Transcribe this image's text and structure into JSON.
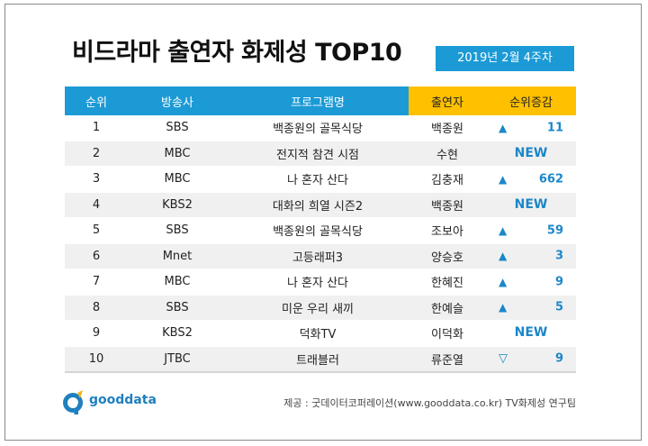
{
  "header": {
    "title": "비드라마 출연자 화제성 TOP10",
    "week": "2019년  2월 4주차"
  },
  "table": {
    "columns": [
      "순위",
      "방송사",
      "프로그램명",
      "출연자",
      "순위증감"
    ],
    "rows": [
      {
        "rank": "1",
        "broadcaster": "SBS",
        "program": "백종원의 골목식당",
        "performer": "백종원",
        "change": {
          "dir": "up",
          "value": "11"
        }
      },
      {
        "rank": "2",
        "broadcaster": "MBC",
        "program": "전지적 참견 시점",
        "performer": "수현",
        "change": {
          "dir": "new",
          "value": "NEW"
        }
      },
      {
        "rank": "3",
        "broadcaster": "MBC",
        "program": "나 혼자 산다",
        "performer": "김충재",
        "change": {
          "dir": "up",
          "value": "662"
        }
      },
      {
        "rank": "4",
        "broadcaster": "KBS2",
        "program": "대화의 희열 시즌2",
        "performer": "백종원",
        "change": {
          "dir": "new",
          "value": "NEW"
        }
      },
      {
        "rank": "5",
        "broadcaster": "SBS",
        "program": "백종원의 골목식당",
        "performer": "조보아",
        "change": {
          "dir": "up",
          "value": "59"
        }
      },
      {
        "rank": "6",
        "broadcaster": "Mnet",
        "program": "고등래퍼3",
        "performer": "양승호",
        "change": {
          "dir": "up",
          "value": "3"
        }
      },
      {
        "rank": "7",
        "broadcaster": "MBC",
        "program": "나 혼자 산다",
        "performer": "한혜진",
        "change": {
          "dir": "up",
          "value": "9"
        }
      },
      {
        "rank": "8",
        "broadcaster": "SBS",
        "program": "미운 우리 새끼",
        "performer": "한예슬",
        "change": {
          "dir": "up",
          "value": "5"
        }
      },
      {
        "rank": "9",
        "broadcaster": "KBS2",
        "program": "덕화TV",
        "performer": "이덕화",
        "change": {
          "dir": "new",
          "value": "NEW"
        }
      },
      {
        "rank": "10",
        "broadcaster": "JTBC",
        "program": "트래블러",
        "performer": "류준열",
        "change": {
          "dir": "down",
          "value": "9"
        }
      }
    ]
  },
  "symbols": {
    "up": "▲",
    "down": "▽"
  },
  "footer": {
    "logo_text": "gooddata",
    "logo_icon": "gooddata-logo-icon",
    "source": "제공 : 굿데이터코퍼레이션(www.gooddata.co.kr) TV화제성 연구팀"
  },
  "colors": {
    "header_blue": "#1b9ad6",
    "header_gold": "#ffc000",
    "accent": "#1b87c9"
  }
}
